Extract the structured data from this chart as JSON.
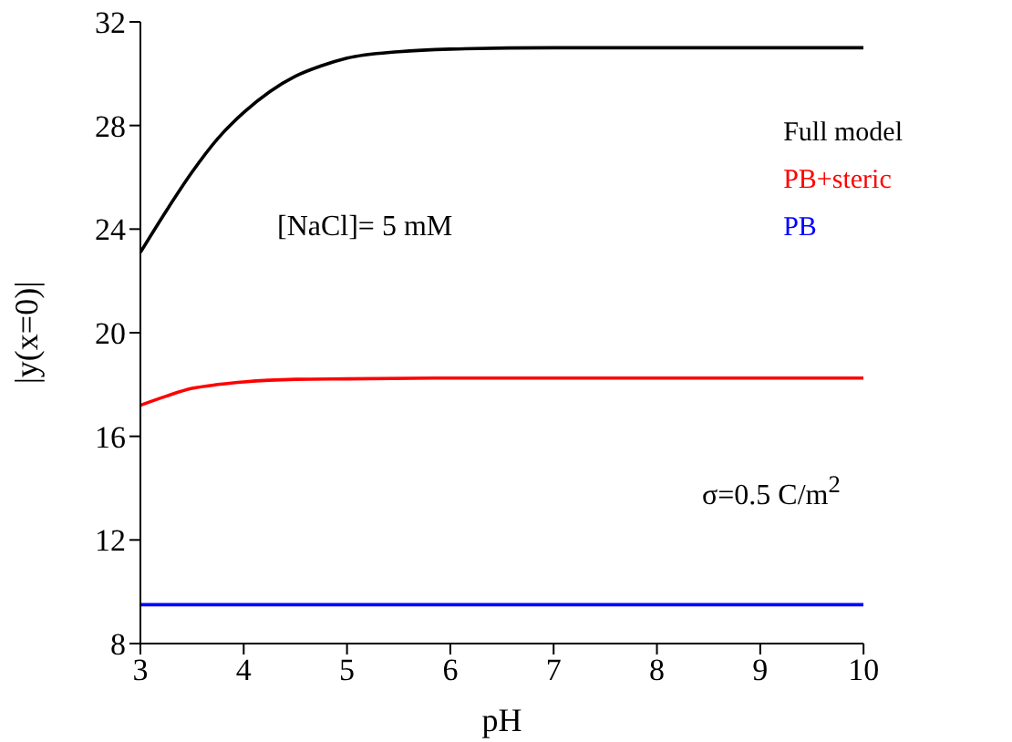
{
  "chart_data": {
    "type": "line",
    "xlabel": "pH",
    "ylabel": "|y(x=0)|",
    "xlim": [
      3,
      10
    ],
    "xticks": [
      3,
      4,
      5,
      6,
      7,
      8,
      9,
      10
    ],
    "ylim": [
      8,
      32
    ],
    "yticks": [
      8,
      12,
      16,
      20,
      24,
      28,
      32
    ],
    "grid": false,
    "legend": "top right",
    "marker": "none",
    "line_style": "solid",
    "annotations": [
      "[NaCl]= 5 mM",
      "σ=0.5 C/m$^{2}$"
    ],
    "series": [
      {
        "name": "Full model",
        "color": "#000000",
        "x": [
          3,
          3.25,
          3.5,
          3.75,
          4,
          4.25,
          4.5,
          4.75,
          5,
          5.5,
          6,
          7,
          8,
          9,
          10
        ],
        "values": [
          23.1,
          24.7,
          26.2,
          27.5,
          28.5,
          29.3,
          29.9,
          30.3,
          30.6,
          30.85,
          30.95,
          31,
          31,
          31,
          31
        ]
      },
      {
        "name": "PB+steric",
        "color": "#ff0000",
        "x": [
          3,
          3.25,
          3.5,
          3.75,
          4,
          4.5,
          5,
          6,
          7,
          8,
          9,
          10
        ],
        "values": [
          17.2,
          17.55,
          17.85,
          18.0,
          18.1,
          18.2,
          18.22,
          18.25,
          18.25,
          18.25,
          18.25,
          18.25
        ]
      },
      {
        "name": "PB",
        "color": "#0000ff",
        "x": [
          3,
          10
        ],
        "values": [
          9.5,
          9.5
        ]
      }
    ]
  }
}
